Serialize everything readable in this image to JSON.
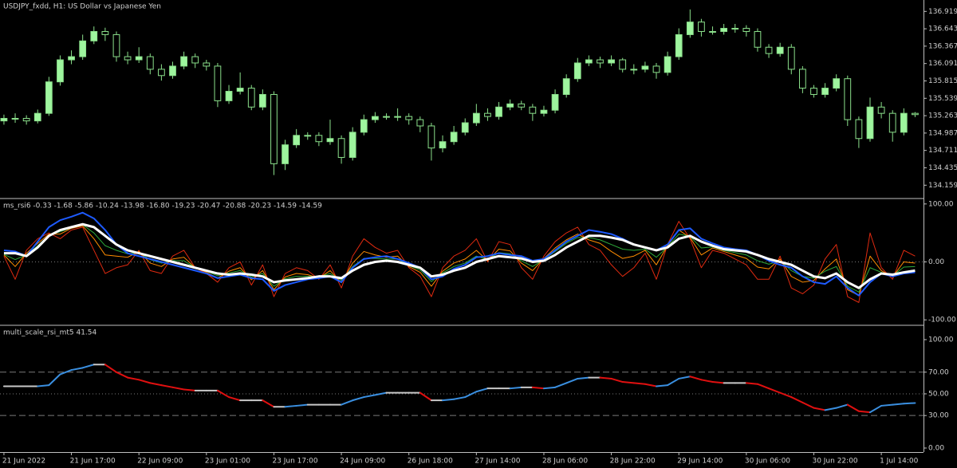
{
  "chart_data": [
    {
      "type": "candlestick",
      "title": "USDJPY_fxdd, H1:  US Dollar vs Japanese Yen",
      "up_color": "#9ef59e",
      "down_color": "#000000",
      "wick_color": "#8be08b",
      "xlim": [
        -0.35,
        81.75
      ],
      "ylim": [
        133.96,
        137.1
      ],
      "yticks": [
        134.159,
        134.435,
        134.711,
        134.987,
        135.263,
        135.539,
        135.815,
        136.091,
        136.367,
        136.643,
        136.919
      ],
      "open": [
        135.18,
        135.22,
        135.22,
        135.18,
        135.3,
        135.8,
        136.15,
        136.2,
        136.45,
        136.6,
        136.55,
        136.2,
        136.15,
        136.2,
        136.0,
        135.9,
        136.05,
        136.2,
        136.1,
        136.05,
        135.5,
        135.65,
        135.7,
        135.4,
        135.6,
        134.5,
        134.8,
        134.95,
        134.95,
        134.85,
        134.9,
        134.6,
        135.0,
        135.2,
        135.25,
        135.25,
        135.25,
        135.2,
        135.1,
        134.75,
        134.85,
        135.0,
        135.15,
        135.3,
        135.25,
        135.4,
        135.45,
        135.4,
        135.3,
        135.35,
        135.6,
        135.85,
        136.1,
        136.15,
        136.1,
        136.15,
        136.0,
        136.0,
        136.05,
        135.95,
        136.2,
        136.55,
        136.75,
        136.6,
        136.6,
        136.65,
        136.65,
        136.6,
        136.35,
        136.25,
        136.35,
        136.0,
        135.7,
        135.6,
        135.7,
        135.85,
        135.2,
        134.9,
        135.4,
        135.3,
        135.0,
        135.3
      ],
      "high": [
        135.28,
        135.3,
        135.27,
        135.36,
        135.88,
        136.22,
        136.3,
        136.55,
        136.68,
        136.66,
        136.6,
        136.28,
        136.35,
        136.25,
        136.08,
        136.12,
        136.28,
        136.25,
        136.15,
        136.1,
        135.75,
        135.95,
        135.75,
        135.68,
        135.65,
        134.88,
        135.05,
        135.0,
        135.0,
        135.2,
        134.95,
        135.08,
        135.28,
        135.32,
        135.3,
        135.38,
        135.3,
        135.25,
        135.15,
        134.95,
        135.1,
        135.22,
        135.45,
        135.38,
        135.48,
        135.52,
        135.5,
        135.45,
        135.42,
        135.68,
        135.92,
        136.18,
        136.22,
        136.2,
        136.22,
        136.18,
        136.08,
        136.12,
        136.1,
        136.28,
        136.65,
        136.95,
        136.8,
        136.68,
        136.72,
        136.72,
        136.7,
        136.65,
        136.4,
        136.42,
        136.4,
        136.05,
        135.75,
        135.78,
        135.92,
        135.9,
        135.25,
        135.55,
        135.48,
        135.35,
        135.38,
        135.32
      ],
      "low": [
        135.12,
        135.15,
        135.12,
        135.14,
        135.26,
        135.74,
        136.08,
        136.15,
        136.4,
        136.45,
        136.12,
        136.08,
        136.1,
        135.92,
        135.82,
        135.85,
        136.0,
        136.02,
        135.98,
        135.4,
        135.45,
        135.6,
        135.35,
        135.35,
        134.32,
        134.4,
        134.75,
        134.88,
        134.78,
        134.8,
        134.5,
        134.55,
        134.95,
        135.15,
        135.2,
        135.18,
        135.12,
        135.0,
        134.55,
        134.68,
        134.8,
        134.95,
        135.1,
        135.18,
        135.2,
        135.35,
        135.35,
        135.18,
        135.25,
        135.3,
        135.55,
        135.8,
        136.05,
        136.02,
        136.05,
        135.95,
        135.92,
        135.95,
        135.85,
        135.9,
        136.15,
        136.5,
        136.52,
        136.55,
        136.55,
        136.58,
        136.52,
        136.28,
        136.18,
        136.2,
        135.92,
        135.62,
        135.55,
        135.55,
        135.65,
        135.1,
        134.75,
        134.85,
        135.22,
        134.85,
        134.95,
        135.24
      ],
      "close": [
        135.22,
        135.22,
        135.18,
        135.3,
        135.8,
        136.15,
        136.2,
        136.45,
        136.6,
        136.55,
        136.2,
        136.15,
        136.2,
        136.0,
        135.9,
        136.05,
        136.2,
        136.1,
        136.05,
        135.5,
        135.65,
        135.7,
        135.4,
        135.6,
        134.5,
        134.8,
        134.95,
        134.95,
        134.85,
        134.9,
        134.6,
        135.0,
        135.2,
        135.25,
        135.25,
        135.25,
        135.2,
        135.1,
        134.75,
        134.85,
        135.0,
        135.15,
        135.3,
        135.25,
        135.4,
        135.45,
        135.4,
        135.3,
        135.35,
        135.6,
        135.85,
        136.1,
        136.15,
        136.1,
        136.15,
        136.0,
        136.0,
        136.05,
        135.95,
        136.2,
        136.55,
        136.75,
        136.6,
        136.6,
        136.65,
        136.65,
        136.6,
        136.35,
        136.25,
        136.35,
        136.0,
        135.7,
        135.6,
        135.7,
        135.85,
        135.2,
        134.9,
        135.4,
        135.3,
        135.0,
        135.3,
        135.28
      ]
    },
    {
      "type": "line",
      "title": "ms_rsi6 -0.33 -1.68 -5.86 -10.24 -13.98 -16.80 -19.23 -20.47 -20.88 -20.23 -14.59 -14.59",
      "ylim": [
        -108,
        108
      ],
      "yticks": [
        {
          "value": 100,
          "label": "100.00"
        },
        {
          "value": 0,
          "label": "0.00"
        },
        {
          "value": -100,
          "label": "-100.00"
        }
      ],
      "levels": [
        {
          "value": 0,
          "style": "dotted"
        }
      ],
      "series": [
        {
          "color": "#e02a10",
          "width": 1,
          "values": [
            10,
            -30,
            20,
            40,
            50,
            40,
            55,
            60,
            20,
            -20,
            -10,
            -5,
            20,
            -15,
            -20,
            10,
            20,
            -10,
            -20,
            -35,
            -10,
            0,
            -40,
            -5,
            -60,
            -20,
            -10,
            -15,
            -30,
            -5,
            -45,
            10,
            40,
            25,
            15,
            20,
            -10,
            -25,
            -60,
            -10,
            10,
            20,
            40,
            0,
            35,
            30,
            -10,
            -30,
            10,
            35,
            50,
            60,
            30,
            20,
            -5,
            -25,
            -10,
            15,
            -30,
            30,
            70,
            40,
            -10,
            20,
            15,
            5,
            -5,
            -30,
            -30,
            10,
            -45,
            -55,
            -40,
            5,
            30,
            -60,
            -70,
            50,
            -10,
            -30,
            20,
            10
          ]
        },
        {
          "color": "#ff8c00",
          "width": 1,
          "values": [
            12,
            -8,
            15,
            32,
            48,
            48,
            58,
            62,
            40,
            12,
            10,
            8,
            18,
            -2,
            -8,
            5,
            8,
            -10,
            -18,
            -28,
            -16,
            -10,
            -31,
            -15,
            -48,
            -26,
            -20,
            -22,
            -28,
            -15,
            -36,
            -2,
            18,
            12,
            8,
            10,
            -8,
            -18,
            -42,
            -16,
            -2,
            5,
            20,
            2,
            22,
            19,
            -2,
            -15,
            6,
            24,
            38,
            48,
            38,
            32,
            18,
            6,
            10,
            20,
            -5,
            28,
            55,
            42,
            12,
            24,
            18,
            12,
            6,
            -9,
            -12,
            5,
            -25,
            -35,
            -32,
            -12,
            5,
            -48,
            -58,
            10,
            -15,
            -26,
            0,
            -2
          ]
        },
        {
          "color": "#2eaa3a",
          "width": 1,
          "values": [
            13,
            4,
            12,
            28,
            46,
            52,
            59,
            64,
            50,
            28,
            20,
            14,
            16,
            4,
            -2,
            2,
            2,
            -10,
            -16,
            -24,
            -19,
            -15,
            -26,
            -20,
            -42,
            -29,
            -25,
            -25,
            -26,
            -20,
            -32,
            -8,
            6,
            6,
            5,
            5,
            -6,
            -14,
            -34,
            -19,
            -8,
            -2,
            10,
            4,
            16,
            14,
            2,
            -8,
            4,
            18,
            32,
            42,
            42,
            38,
            30,
            22,
            20,
            22,
            8,
            26,
            48,
            44,
            24,
            26,
            20,
            16,
            12,
            2,
            -4,
            2,
            -15,
            -25,
            -28,
            -16,
            -8,
            -42,
            -52,
            -10,
            -18,
            -24,
            -9,
            -8
          ]
        },
        {
          "color": "#1e5bff",
          "width": 2,
          "values": [
            20,
            18,
            10,
            35,
            60,
            72,
            78,
            85,
            75,
            55,
            30,
            15,
            10,
            5,
            0,
            -5,
            -10,
            -15,
            -20,
            -28,
            -25,
            -22,
            -28,
            -30,
            -50,
            -40,
            -35,
            -30,
            -28,
            -25,
            -35,
            -10,
            5,
            8,
            10,
            5,
            -2,
            -10,
            -30,
            -25,
            -12,
            -5,
            8,
            10,
            15,
            12,
            10,
            2,
            5,
            20,
            35,
            45,
            55,
            52,
            48,
            40,
            30,
            25,
            20,
            30,
            55,
            58,
            40,
            32,
            25,
            22,
            20,
            12,
            2,
            -5,
            -10,
            -25,
            -35,
            -38,
            -25,
            -45,
            -58,
            -35,
            -20,
            -25,
            -20,
            -18
          ]
        },
        {
          "color": "#ffffff",
          "width": 3,
          "values": [
            15,
            15,
            10,
            25,
            45,
            55,
            60,
            65,
            60,
            45,
            30,
            20,
            15,
            10,
            5,
            0,
            -5,
            -10,
            -15,
            -20,
            -22,
            -20,
            -22,
            -25,
            -35,
            -32,
            -30,
            -28,
            -25,
            -25,
            -28,
            -15,
            -5,
            0,
            2,
            0,
            -5,
            -10,
            -25,
            -22,
            -15,
            -10,
            0,
            5,
            10,
            8,
            6,
            0,
            2,
            12,
            25,
            35,
            45,
            45,
            42,
            38,
            30,
            25,
            20,
            25,
            40,
            45,
            35,
            28,
            22,
            20,
            18,
            12,
            5,
            0,
            -5,
            -15,
            -25,
            -28,
            -20,
            -35,
            -45,
            -30,
            -20,
            -22,
            -18,
            -15
          ]
        }
      ]
    },
    {
      "type": "line",
      "title": "multi_scale_rsi_mt5 41.54",
      "ylim": [
        -3.7,
        112.5
      ],
      "yticks": [
        {
          "value": 100,
          "label": "100.00"
        },
        {
          "value": 70,
          "label": "70.00"
        },
        {
          "value": 50,
          "label": "50.00"
        },
        {
          "value": 30,
          "label": "30.00"
        },
        {
          "value": 0,
          "label": "0.00"
        }
      ],
      "levels": [
        {
          "value": 70,
          "style": "dashed"
        },
        {
          "value": 50,
          "style": "dotted"
        },
        {
          "value": 30,
          "style": "dashed"
        }
      ],
      "xticks": [
        {
          "value": 0,
          "label": "21 Jun 2022"
        },
        {
          "value": 6,
          "label": "21 Jun 17:00"
        },
        {
          "value": 12,
          "label": "22 Jun 09:00"
        },
        {
          "value": 18,
          "label": "23 Jun 01:00"
        },
        {
          "value": 24,
          "label": "23 Jun 17:00"
        },
        {
          "value": 30,
          "label": "24 Jun 09:00"
        },
        {
          "value": 36,
          "label": "26 Jun 18:00"
        },
        {
          "value": 42,
          "label": "27 Jun 14:00"
        },
        {
          "value": 48,
          "label": "28 Jun 06:00"
        },
        {
          "value": 54,
          "label": "28 Jun 22:00"
        },
        {
          "value": 60,
          "label": "29 Jun 14:00"
        },
        {
          "value": 66,
          "label": "30 Jun 06:00"
        },
        {
          "value": 72,
          "label": "30 Jun 22:00"
        },
        {
          "value": 78,
          "label": "1 Jul 14:00"
        }
      ],
      "series": [
        {
          "up_color": "#3a8fe0",
          "down_color": "#e01010",
          "flat_color": "#c8c8c8",
          "width": 2,
          "values": [
            57,
            57,
            57,
            57,
            58,
            68,
            72,
            74,
            77,
            77,
            70,
            65,
            63,
            60,
            58,
            56,
            54,
            53,
            53,
            53,
            47,
            44,
            44,
            44,
            38,
            38,
            39,
            40,
            40,
            40,
            40,
            44,
            47,
            49,
            51,
            51,
            51,
            51,
            44,
            44,
            45,
            47,
            52,
            55,
            55,
            55,
            56,
            56,
            55,
            56,
            60,
            64,
            65,
            65,
            64,
            61,
            60,
            59,
            57,
            58,
            64,
            66,
            63,
            61,
            60,
            60,
            60,
            59,
            55,
            51,
            47,
            42,
            37,
            35,
            37,
            40,
            34,
            33,
            39,
            40,
            41,
            41.54
          ]
        }
      ]
    }
  ]
}
